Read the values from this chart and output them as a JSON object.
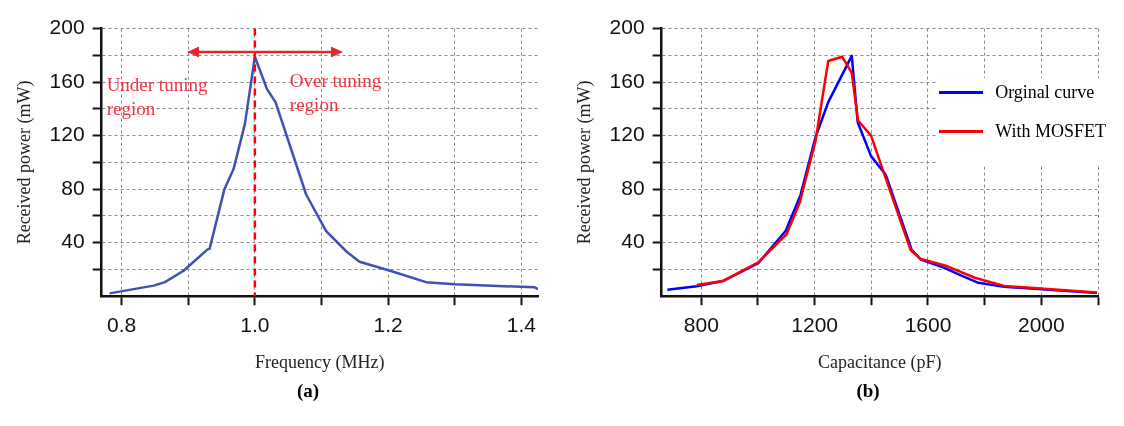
{
  "chart_data": [
    {
      "type": "line",
      "xlabel": "Frequency (MHz)",
      "ylabel": "Received power (mW)",
      "xlim": [
        0.77,
        1.425
      ],
      "ylim": [
        0,
        200
      ],
      "xticks": [
        0.8,
        {
          "value": 0.9,
          "label": null
        },
        "1.0",
        {
          "value": 1.1,
          "label": null
        },
        1.2,
        {
          "value": 1.3,
          "label": null
        },
        1.4
      ],
      "yticks": [
        {
          "value": 20,
          "label": null
        },
        40,
        {
          "value": 60,
          "label": null
        },
        80,
        {
          "value": 100,
          "label": null
        },
        120,
        {
          "value": 140,
          "label": null
        },
        160,
        {
          "value": 180,
          "label": null
        },
        200
      ],
      "grid": true,
      "marker": "none",
      "line_style": "solid",
      "series": [
        {
          "color": "#3f51b5",
          "x": [
            0.782,
            0.848,
            0.865,
            0.893,
            0.929,
            0.932,
            0.954,
            0.968,
            0.985,
            1.0,
            1.018,
            1.031,
            1.077,
            1.107,
            1.137,
            1.157,
            1.203,
            1.257,
            1.3,
            1.42,
            1.425
          ],
          "values": [
            2.1,
            7.9,
            10.5,
            19,
            35,
            35.4,
            79.5,
            95,
            128.6,
            179,
            155,
            145,
            76,
            48.6,
            33.6,
            25.7,
            19,
            10.5,
            8.9,
            6.6,
            5.2
          ]
        }
      ],
      "ref_lines": [
        {
          "axis": "x",
          "value": 1.0,
          "color": "#ff0000",
          "line_style": "dashed"
        }
      ],
      "annotations": [
        "Under tuning region",
        "Over tuning region",
        "(a)"
      ]
    },
    {
      "type": "line",
      "xlabel": "Capacitance (pF)",
      "ylabel": "Received power (mW)",
      "xlim": [
        660,
        2200
      ],
      "ylim": [
        0,
        200
      ],
      "xticks": [
        800,
        {
          "value": 1000,
          "label": null
        },
        1200,
        {
          "value": 1400,
          "label": null
        },
        1600,
        {
          "value": 1800,
          "label": null
        },
        2000,
        {
          "value": 2200,
          "label": null
        }
      ],
      "yticks": [
        {
          "value": 20,
          "label": null
        },
        40,
        {
          "value": 60,
          "label": null
        },
        80,
        {
          "value": 100,
          "label": null
        },
        120,
        {
          "value": 140,
          "label": null
        },
        160,
        {
          "value": 180,
          "label": null
        },
        200
      ],
      "grid": true,
      "marker": "none",
      "line_style": "solid",
      "legend": "top right",
      "series": [
        {
          "name": "Orginal curve",
          "color": "#0000ff",
          "x": [
            680,
            784,
            876,
            1001,
            1098,
            1150,
            1203,
            1248,
            1331,
            1352,
            1399,
            1451,
            1542,
            1575,
            1660,
            1712,
            1778,
            1869,
            2196
          ],
          "values": [
            4.9,
            7.5,
            11.3,
            24.7,
            48.9,
            75.5,
            118.7,
            145,
            179.6,
            130,
            104.7,
            90.7,
            34.9,
            27.3,
            21,
            15.9,
            10,
            7,
            2.4
          ]
        },
        {
          "name": "With MOSFET",
          "color": "#ff0000",
          "x": [
            784,
            876,
            1001,
            1101,
            1148,
            1203,
            1248,
            1297,
            1331,
            1353,
            1399,
            1451,
            1539,
            1575,
            1660,
            1765,
            1869,
            2196
          ],
          "values": [
            8.3,
            11.3,
            25.3,
            46.3,
            70.4,
            116,
            175.8,
            179,
            166.9,
            131.3,
            120,
            88,
            34.3,
            27.8,
            23,
            13.8,
            7.7,
            2.7
          ]
        }
      ],
      "annotations": [
        "(b)"
      ]
    }
  ]
}
